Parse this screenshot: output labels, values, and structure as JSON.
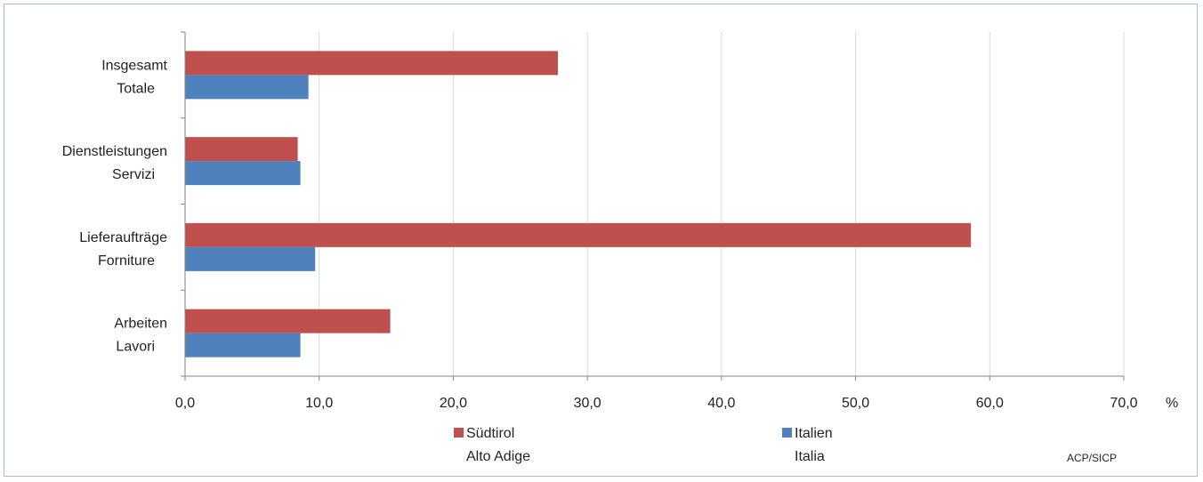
{
  "chart_data": {
    "type": "bar",
    "orientation": "horizontal",
    "categories": [
      [
        "Insgesamt",
        "Totale"
      ],
      [
        "Dienstleistungen",
        "Servizi"
      ],
      [
        "Lieferaufträge",
        "Forniture"
      ],
      [
        "Arbeiten",
        "Lavori"
      ]
    ],
    "series": [
      {
        "name": [
          "Südtirol",
          "Alto Adige"
        ],
        "color": "#c0504d",
        "values": [
          27.8,
          8.4,
          58.6,
          15.3
        ]
      },
      {
        "name": [
          "Italien",
          "Italia"
        ],
        "color": "#4f81bd",
        "values": [
          9.2,
          8.6,
          9.7,
          8.6
        ]
      }
    ],
    "xlim": [
      0,
      70
    ],
    "xticks": [
      0,
      10,
      20,
      30,
      40,
      50,
      60,
      70
    ],
    "xtick_labels": [
      "0,0",
      "10,0",
      "20,0",
      "30,0",
      "40,0",
      "50,0",
      "60,0",
      "70,0"
    ],
    "unit_label": "%",
    "grid": "vertical",
    "legend_position": "bottom",
    "source_note": "ACP/SICP",
    "colors": {
      "gridline": "#d9d9d9",
      "axis": "#868686",
      "frame": "#a9bfd1"
    }
  }
}
